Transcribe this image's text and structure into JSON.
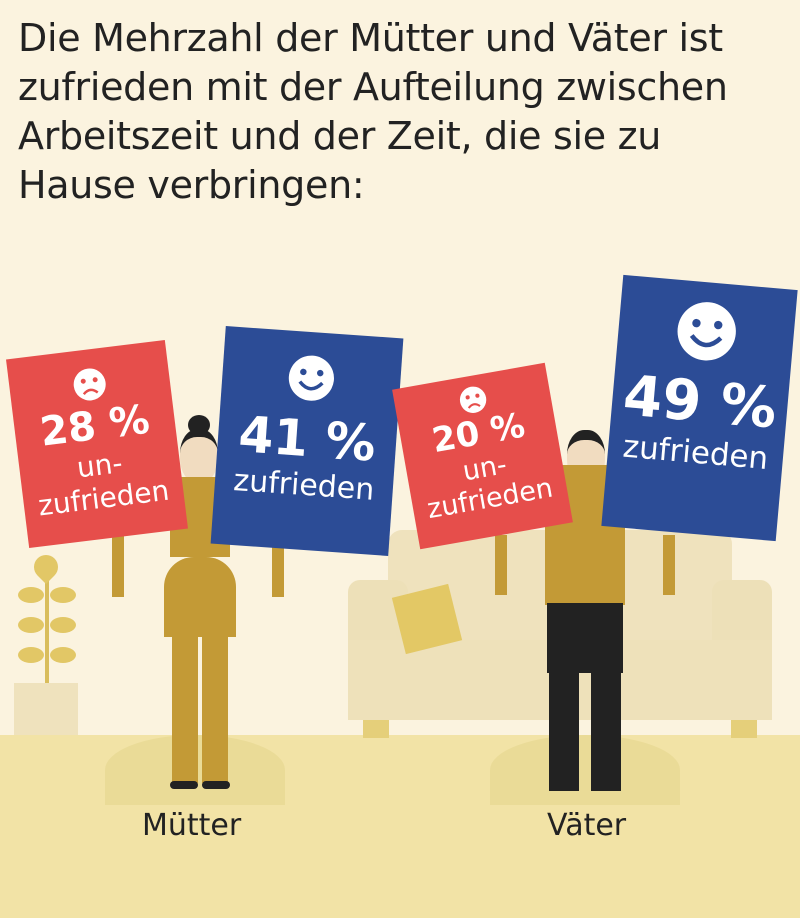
{
  "title": "Die Mehrzahl der Mütter und Väter ist zufrieden mit der Aufteilung zwischen Arbeitszeit und der Zeit, die sie zu Hause verbringen:",
  "groups": [
    {
      "label": "Mütter",
      "unhappy": {
        "value": "28 %",
        "text_1": "un-",
        "text_2": "zufrieden",
        "icon": "sad-face-icon"
      },
      "happy": {
        "value": "41 %",
        "text": "zufrieden",
        "icon": "smiley-face-icon"
      }
    },
    {
      "label": "Väter",
      "unhappy": {
        "value": "20 %",
        "text_1": "un-",
        "text_2": "zufrieden",
        "icon": "sad-face-icon"
      },
      "happy": {
        "value": "49 %",
        "text": "zufrieden",
        "icon": "smiley-face-icon"
      }
    }
  ],
  "colors": {
    "unhappy": "#e64e4b",
    "happy": "#2c4c96",
    "background": "#fbf3df",
    "floor": "#f2e3a6"
  }
}
